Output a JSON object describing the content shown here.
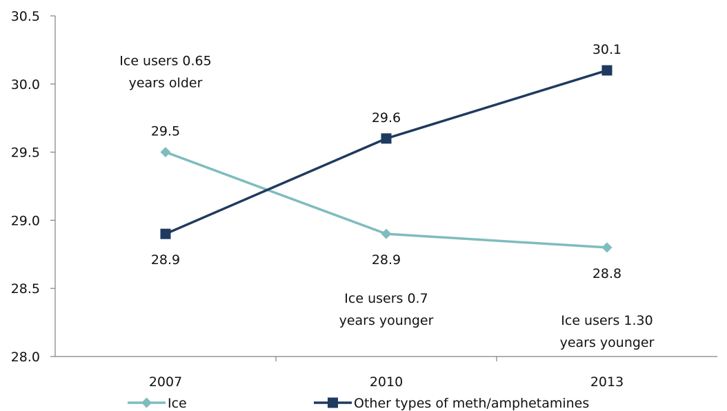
{
  "chart_data": {
    "type": "line",
    "categories": [
      "2007",
      "2010",
      "2013"
    ],
    "series": [
      {
        "name": "Ice",
        "values": [
          29.5,
          28.9,
          28.8
        ],
        "color": "#7fbcbe",
        "marker": "diamond",
        "labels": [
          "29.5",
          "28.9",
          "28.8"
        ]
      },
      {
        "name": "Other types of meth/amphetamines",
        "values": [
          28.9,
          29.6,
          30.1
        ],
        "color": "#1f3a5f",
        "marker": "square",
        "labels": [
          "28.9",
          "29.6",
          "30.1"
        ]
      }
    ],
    "ylim": [
      28.0,
      30.5
    ],
    "yticks": [
      "28.0",
      "28.5",
      "29.0",
      "29.5",
      "30.0",
      "30.5"
    ],
    "ytick_values": [
      28.0,
      28.5,
      29.0,
      29.5,
      30.0,
      30.5
    ],
    "annotations": [
      {
        "lines": [
          "Ice users 0.65",
          "years older"
        ],
        "category": "2007"
      },
      {
        "lines": [
          "Ice users 0.7",
          "years younger"
        ],
        "category": "2010"
      },
      {
        "lines": [
          "Ice users 1.30",
          "years younger"
        ],
        "category": "2013"
      }
    ],
    "legend_position": "bottom",
    "grid": false
  }
}
